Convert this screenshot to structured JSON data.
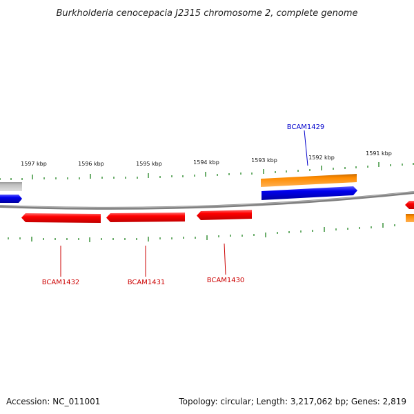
{
  "title": "Burkholderia cenocepacia J2315 chromosome 2, complete genome",
  "footer": {
    "accession": "Accession: NC_011001",
    "summary": "Topology: circular; Length: 3,217,062 bp; Genes: 2,819"
  },
  "tick_labels": [
    "1597 kbp",
    "1596 kbp",
    "1595 kbp",
    "1594 kbp",
    "1593 kbp",
    "1592 kbp",
    "1591 kbp"
  ],
  "gene_labels": {
    "bcam1429": "BCAM1429",
    "bcam1430": "BCAM1430",
    "bcam1431": "BCAM1431",
    "bcam1432": "BCAM1432"
  },
  "colors": {
    "backbone": "#808080",
    "tick": "#2e8b2e",
    "cds": "#ff0000",
    "gene": "#0000ee",
    "rna": "#ff8c00",
    "other": "#c0c0c0",
    "label_forward": "#0000cc",
    "label_reverse": "#cc0000"
  }
}
